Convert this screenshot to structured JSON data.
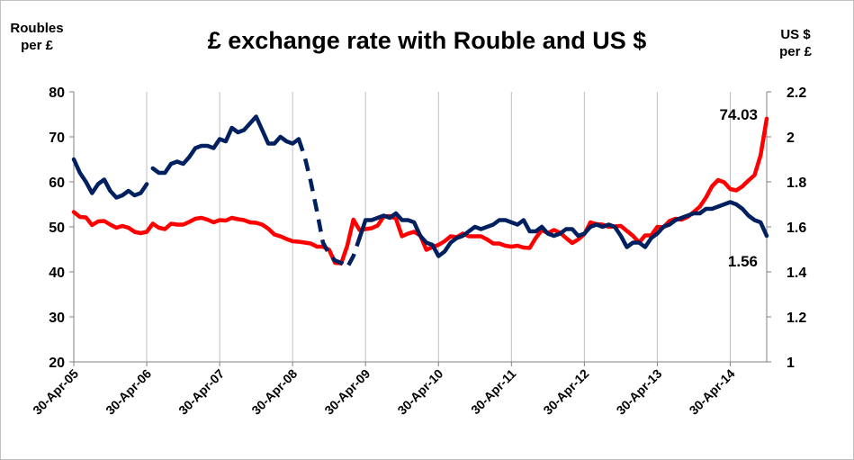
{
  "chart_data": {
    "type": "line",
    "title": "£ exchange rate with Rouble and US $",
    "ylabel": "Roubles per £",
    "ylabel_lines": [
      "Roubles",
      "per £"
    ],
    "y2label": "US $ per £",
    "y2label_lines": [
      "US $",
      "per £"
    ],
    "ylim": [
      20,
      80
    ],
    "y2lim": [
      1,
      2.2
    ],
    "y_ticks": [
      20,
      30,
      40,
      50,
      60,
      70,
      80
    ],
    "y2_ticks": [
      "1",
      "1.2",
      "1.4",
      "1.6",
      "1.8",
      "2",
      "2.2"
    ],
    "x_tick_labels": [
      "30-Apr-05",
      "30-Apr-06",
      "30-Apr-07",
      "30-Apr-08",
      "30-Apr-09",
      "30-Apr-10",
      "30-Apr-11",
      "30-Apr-12",
      "30-Apr-13",
      "30-Apr-14"
    ],
    "x_unit": "months since 30-Apr-05",
    "x_max": 114,
    "grid": "vertical",
    "annotations": [
      {
        "text": "74.03",
        "series": "rouble",
        "point": "last"
      },
      {
        "text": "1.56",
        "series": "usd",
        "point": "last"
      }
    ],
    "series": [
      {
        "id": "rouble",
        "axis": "left",
        "color": "#ff0000",
        "points": [
          [
            0,
            53.3
          ],
          [
            1,
            52.2
          ],
          [
            2,
            52.1
          ],
          [
            3,
            50.4
          ],
          [
            4,
            51.2
          ],
          [
            5,
            51.3
          ],
          [
            6,
            50.5
          ],
          [
            7,
            49.8
          ],
          [
            8,
            50.2
          ],
          [
            9,
            49.8
          ],
          [
            10,
            48.9
          ],
          [
            11,
            48.6
          ],
          [
            12,
            48.9
          ],
          [
            13,
            50.7
          ],
          [
            14,
            49.8
          ],
          [
            15,
            49.5
          ],
          [
            16,
            50.7
          ],
          [
            17,
            50.5
          ],
          [
            18,
            50.5
          ],
          [
            19,
            51.1
          ],
          [
            20,
            51.8
          ],
          [
            21,
            52.0
          ],
          [
            22,
            51.6
          ],
          [
            23,
            51.0
          ],
          [
            24,
            51.5
          ],
          [
            25,
            51.4
          ],
          [
            26,
            52.0
          ],
          [
            27,
            51.7
          ],
          [
            28,
            51.5
          ],
          [
            29,
            51.0
          ],
          [
            30,
            50.9
          ],
          [
            31,
            50.5
          ],
          [
            32,
            49.6
          ],
          [
            33,
            48.3
          ],
          [
            34,
            47.9
          ],
          [
            35,
            47.3
          ],
          [
            36,
            46.8
          ],
          [
            37,
            46.7
          ],
          [
            38,
            46.5
          ],
          [
            39,
            46.3
          ],
          [
            40,
            45.6
          ],
          [
            41,
            45.6
          ],
          [
            42,
            44.9
          ],
          [
            43,
            42.0
          ],
          [
            44,
            41.9
          ],
          [
            45,
            45.8
          ],
          [
            46,
            51.6
          ],
          [
            47,
            49.3
          ],
          [
            48,
            49.5
          ],
          [
            49,
            49.7
          ],
          [
            50,
            50.3
          ],
          [
            51,
            52.3
          ],
          [
            52,
            52.4
          ],
          [
            53,
            51.8
          ],
          [
            54,
            47.9
          ],
          [
            55,
            48.5
          ],
          [
            56,
            48.9
          ],
          [
            57,
            48.1
          ],
          [
            58,
            44.9
          ],
          [
            59,
            45.5
          ],
          [
            60,
            46.0
          ],
          [
            61,
            46.8
          ],
          [
            62,
            47.9
          ],
          [
            63,
            47.7
          ],
          [
            64,
            48.5
          ],
          [
            65,
            47.9
          ],
          [
            66,
            47.9
          ],
          [
            67,
            47.9
          ],
          [
            68,
            47.2
          ],
          [
            69,
            46.3
          ],
          [
            70,
            46.3
          ],
          [
            71,
            45.8
          ],
          [
            72,
            45.6
          ],
          [
            73,
            45.8
          ],
          [
            74,
            45.4
          ],
          [
            75,
            45.3
          ],
          [
            76,
            47.5
          ],
          [
            77,
            49.3
          ],
          [
            78,
            48.6
          ],
          [
            79,
            49.3
          ],
          [
            80,
            48.7
          ],
          [
            81,
            47.5
          ],
          [
            82,
            46.4
          ],
          [
            83,
            47.2
          ],
          [
            84,
            48.4
          ],
          [
            85,
            51.0
          ],
          [
            86,
            50.6
          ],
          [
            87,
            50.5
          ],
          [
            88,
            50.0
          ],
          [
            89,
            50.1
          ],
          [
            90,
            50.2
          ],
          [
            91,
            49.1
          ],
          [
            92,
            48.0
          ],
          [
            93,
            46.5
          ],
          [
            94,
            48.1
          ],
          [
            95,
            48.1
          ],
          [
            96,
            50.0
          ],
          [
            97,
            49.9
          ],
          [
            98,
            51.3
          ],
          [
            99,
            51.8
          ],
          [
            100,
            51.6
          ],
          [
            101,
            52.2
          ],
          [
            102,
            53.3
          ],
          [
            103,
            54.5
          ],
          [
            104,
            56.5
          ],
          [
            105,
            59.0
          ],
          [
            106,
            60.4
          ],
          [
            107,
            59.9
          ],
          [
            108,
            58.4
          ],
          [
            109,
            58.1
          ],
          [
            110,
            59.0
          ],
          [
            111,
            60.3
          ],
          [
            112,
            61.5
          ],
          [
            113,
            65.9
          ],
          [
            114,
            74.03
          ]
        ]
      },
      {
        "id": "usd",
        "axis": "right",
        "color": "#002060",
        "points": [
          [
            0,
            1.9
          ],
          [
            1,
            1.84
          ],
          [
            2,
            1.8
          ],
          [
            3,
            1.75
          ],
          [
            4,
            1.79
          ],
          [
            5,
            1.81
          ],
          [
            6,
            1.76
          ],
          [
            7,
            1.73
          ],
          [
            8,
            1.74
          ],
          [
            9,
            1.76
          ],
          [
            10,
            1.74
          ],
          [
            11,
            1.75
          ],
          [
            12,
            1.79
          ],
          null,
          [
            13,
            1.86
          ],
          [
            14,
            1.84
          ],
          [
            15,
            1.84
          ],
          [
            16,
            1.88
          ],
          [
            17,
            1.89
          ],
          [
            18,
            1.88
          ],
          [
            19,
            1.91
          ],
          [
            20,
            1.95
          ],
          [
            21,
            1.96
          ],
          [
            22,
            1.96
          ],
          [
            23,
            1.95
          ],
          [
            24,
            1.99
          ],
          [
            25,
            1.98
          ],
          [
            26,
            2.04
          ],
          [
            27,
            2.02
          ],
          [
            28,
            2.03
          ],
          [
            29,
            2.06
          ],
          [
            30,
            2.09
          ],
          [
            31,
            2.03
          ],
          [
            32,
            1.97
          ],
          [
            33,
            1.97
          ],
          [
            34,
            2.0
          ],
          [
            35,
            1.98
          ],
          [
            36,
            1.97
          ],
          [
            37,
            1.99
          ]
        ],
        "dashed_segment": [
          [
            37,
            1.99
          ],
          [
            38,
            1.91
          ],
          [
            39,
            1.8
          ],
          [
            40,
            1.67
          ],
          [
            41,
            1.53
          ],
          [
            42,
            1.48
          ],
          [
            43,
            1.45
          ],
          [
            44,
            1.44
          ],
          [
            45,
            1.42
          ],
          [
            46,
            1.47
          ],
          [
            47,
            1.55
          ]
        ],
        "points_after": [
          [
            47,
            1.55
          ],
          [
            48,
            1.63
          ],
          [
            49,
            1.63
          ],
          [
            50,
            1.64
          ],
          [
            51,
            1.65
          ],
          [
            52,
            1.64
          ],
          [
            53,
            1.66
          ],
          [
            54,
            1.63
          ],
          [
            55,
            1.63
          ],
          [
            56,
            1.62
          ],
          [
            57,
            1.56
          ],
          [
            58,
            1.53
          ],
          [
            59,
            1.52
          ],
          [
            60,
            1.47
          ],
          [
            61,
            1.49
          ],
          [
            62,
            1.53
          ],
          [
            63,
            1.55
          ],
          [
            64,
            1.56
          ],
          [
            65,
            1.58
          ],
          [
            66,
            1.6
          ],
          [
            67,
            1.59
          ],
          [
            68,
            1.6
          ],
          [
            69,
            1.61
          ],
          [
            70,
            1.63
          ],
          [
            71,
            1.63
          ],
          [
            72,
            1.62
          ],
          [
            73,
            1.61
          ],
          [
            74,
            1.63
          ],
          [
            75,
            1.58
          ],
          [
            76,
            1.58
          ],
          [
            77,
            1.6
          ],
          [
            78,
            1.57
          ],
          [
            79,
            1.56
          ],
          [
            80,
            1.57
          ],
          [
            81,
            1.59
          ],
          [
            82,
            1.59
          ],
          [
            83,
            1.56
          ],
          [
            84,
            1.57
          ],
          [
            85,
            1.6
          ],
          [
            86,
            1.61
          ],
          [
            87,
            1.6
          ],
          [
            88,
            1.61
          ],
          [
            89,
            1.6
          ],
          [
            90,
            1.56
          ],
          [
            91,
            1.51
          ],
          [
            92,
            1.53
          ],
          [
            93,
            1.53
          ],
          [
            94,
            1.51
          ],
          [
            95,
            1.55
          ],
          [
            96,
            1.57
          ],
          [
            97,
            1.6
          ],
          [
            98,
            1.61
          ],
          [
            99,
            1.63
          ],
          [
            100,
            1.64
          ],
          [
            101,
            1.65
          ],
          [
            102,
            1.66
          ],
          [
            103,
            1.66
          ],
          [
            104,
            1.68
          ],
          [
            105,
            1.68
          ],
          [
            106,
            1.69
          ],
          [
            107,
            1.7
          ],
          [
            108,
            1.71
          ],
          [
            109,
            1.7
          ],
          [
            110,
            1.68
          ],
          [
            111,
            1.65
          ],
          [
            112,
            1.63
          ],
          [
            113,
            1.62
          ],
          [
            114,
            1.56
          ]
        ]
      }
    ]
  }
}
